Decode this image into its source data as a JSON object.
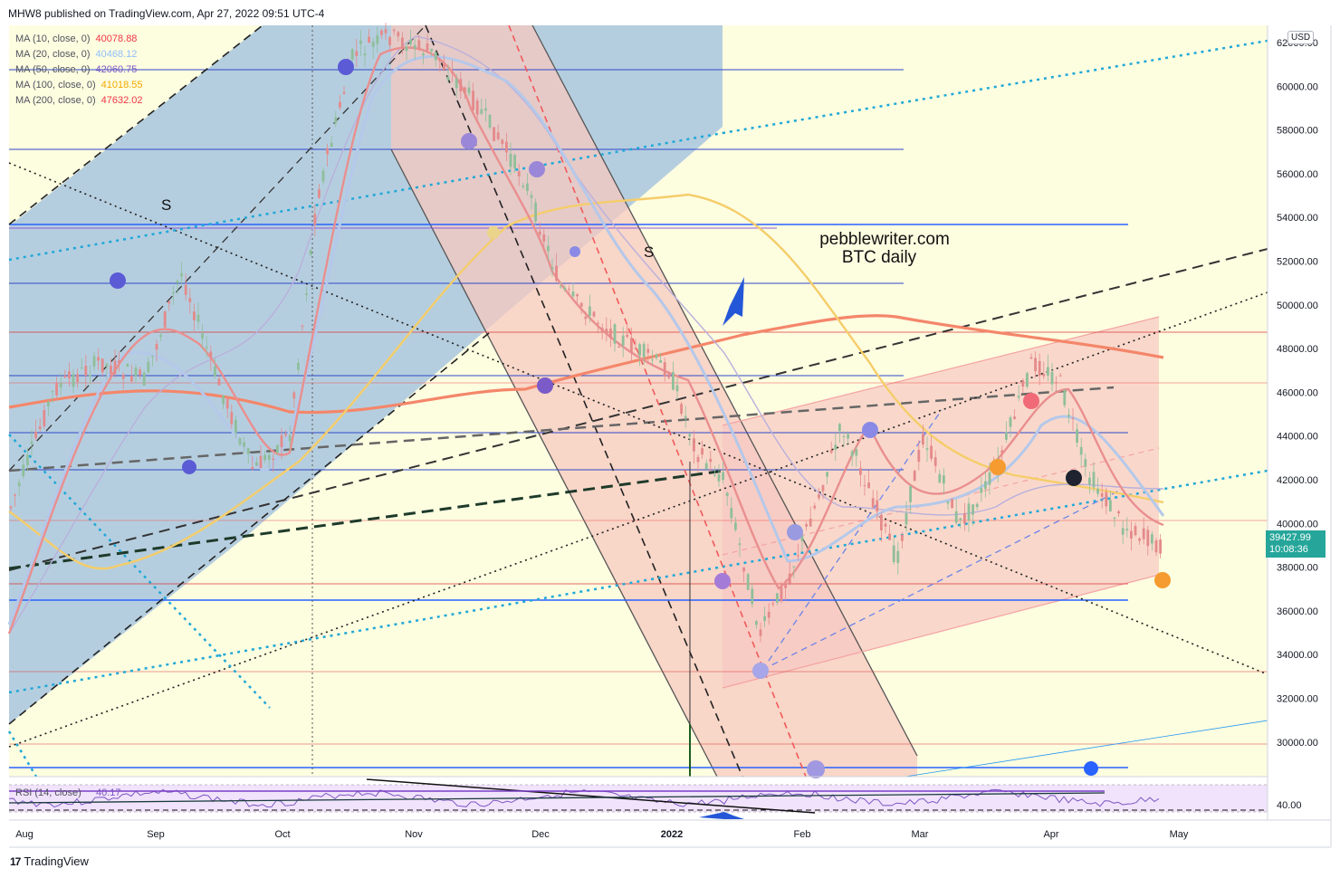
{
  "header": {
    "publisher_line": "MHW8 published on TradingView.com, Apr 27, 2022 09:51 UTC-4"
  },
  "legend": [
    {
      "name": "MA (10, close, 0)",
      "value": "40078.88",
      "color": "#f23645"
    },
    {
      "name": "MA (20, close, 0)",
      "value": "40468.12",
      "color": "#90bff9"
    },
    {
      "name": "MA (50, close, 0)",
      "value": "42060.75",
      "color": "#7e57c2"
    },
    {
      "name": "MA (100, close, 0)",
      "value": "41018.55",
      "color": "#f2a900"
    },
    {
      "name": "MA (200, close, 0)",
      "value": "47632.02",
      "color": "#f23645"
    }
  ],
  "annotations": {
    "site": "pebblewriter.com",
    "subtitle": "BTC daily",
    "s_label_1": "S",
    "s_label_2": "S"
  },
  "price_axis": {
    "currency": "USD",
    "ticks": [
      "62000.00",
      "60000.00",
      "58000.00",
      "56000.00",
      "54000.00",
      "52000.00",
      "50000.00",
      "48000.00",
      "46000.00",
      "44000.00",
      "42000.00",
      "40000.00",
      "38000.00",
      "36000.00",
      "34000.00",
      "32000.00",
      "30000.00"
    ],
    "last_price": "39427.99",
    "countdown": "10:08:36"
  },
  "time_axis": {
    "ticks": [
      "Aug",
      "Sep",
      "Oct",
      "Nov",
      "Dec",
      "2022",
      "Feb",
      "Mar",
      "Apr",
      "May"
    ]
  },
  "rsi": {
    "label": "RSI (14, close)",
    "value": "40.17",
    "tick": "40.00"
  },
  "footer": {
    "brand": "TradingView"
  },
  "chart_data": {
    "type": "line",
    "title": "BTC daily",
    "x": [
      "Aug",
      "Sep",
      "Oct",
      "Nov",
      "Dec",
      "2022",
      "Feb",
      "Mar",
      "Apr",
      "Apr 27"
    ],
    "ylim": [
      28000,
      62500
    ],
    "series": [
      {
        "name": "MA (200, close, 0)",
        "values": [
          44800,
          45200,
          45300,
          45700,
          46000,
          47800,
          48800,
          49300,
          48200,
          47632
        ]
      },
      {
        "name": "MA (100, close, 0)",
        "values": [
          39800,
          37800,
          41000,
          49500,
          54500,
          55000,
          52000,
          44500,
          42000,
          41018
        ]
      },
      {
        "name": "MA (50, close, 0)",
        "values": [
          34000,
          43000,
          46000,
          58000,
          58500,
          49000,
          40000,
          41500,
          42000,
          42060
        ]
      },
      {
        "name": "MA (10, close, 0)",
        "values": [
          38000,
          48000,
          44000,
          62000,
          57000,
          48000,
          37500,
          43000,
          46500,
          40079
        ]
      }
    ],
    "grid": false
  }
}
